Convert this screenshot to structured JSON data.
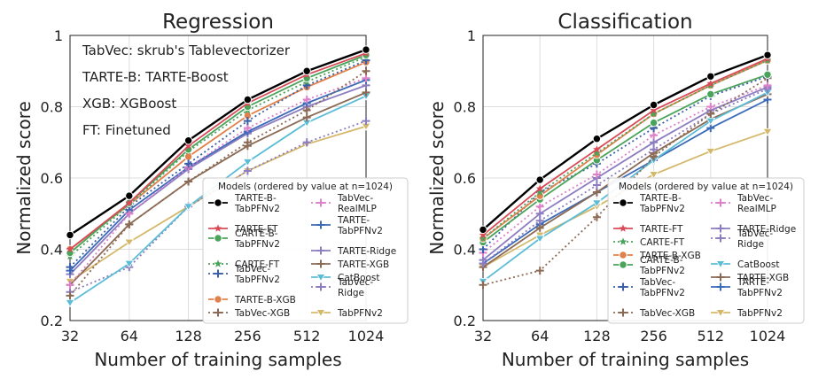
{
  "chart_data": [
    {
      "type": "line",
      "title": "Regression",
      "xlabel": "Number of training samples",
      "ylabel": "Normalized score",
      "x": [
        32,
        64,
        128,
        256,
        512,
        1024
      ],
      "x_ticks": [
        "32",
        "64",
        "128",
        "256",
        "512",
        "1024"
      ],
      "x_scale": "log2",
      "ylim": [
        0.2,
        1.0
      ],
      "y_ticks": [
        "0.2",
        "0.4",
        "0.6",
        "0.8",
        "1"
      ],
      "grid": true,
      "annotations": [
        "TabVec: skrub's Tablevectorizer",
        "TARTE-B: TARTE-Boost",
        "XGB: XGBoost",
        "FT: Finetuned"
      ],
      "legend_title": "Models (ordered by value at n=1024)",
      "legend_position": "lower-right",
      "series": [
        {
          "name": "TARTE-B-TabPFNv2",
          "color": "#000000",
          "style": "solid",
          "marker": "circle",
          "values": [
            0.44,
            0.55,
            0.705,
            0.82,
            0.9,
            0.96
          ]
        },
        {
          "name": "TARTE-FT",
          "color": "#d84b57",
          "style": "solid",
          "marker": "star",
          "values": [
            0.4,
            0.53,
            0.69,
            0.81,
            0.89,
            0.95
          ]
        },
        {
          "name": "CARTE-B-TabPFNv2",
          "color": "#4aa35a",
          "style": "solid",
          "marker": "circle",
          "values": [
            0.39,
            0.53,
            0.68,
            0.8,
            0.88,
            0.945
          ]
        },
        {
          "name": "CARTE-FT",
          "color": "#4aa35a",
          "style": "dotted",
          "marker": "star",
          "values": [
            0.38,
            0.525,
            0.675,
            0.79,
            0.87,
            0.94
          ]
        },
        {
          "name": "TabVec-TabPFNv2",
          "color": "#3b5fa8",
          "style": "dotted",
          "marker": "plus",
          "values": [
            0.35,
            0.52,
            0.64,
            0.76,
            0.86,
            0.93
          ]
        },
        {
          "name": "TARTE-B-XGB",
          "color": "#e0804a",
          "style": "solid",
          "marker": "circle",
          "values": [
            0.4,
            0.525,
            0.66,
            0.775,
            0.855,
            0.925
          ]
        },
        {
          "name": "TabVec-XGB",
          "color": "#8b6a55",
          "style": "dotted",
          "marker": "plus",
          "values": [
            0.27,
            0.47,
            0.59,
            0.7,
            0.79,
            0.9
          ]
        },
        {
          "name": "TabVec-RealMLP",
          "color": "#de7fc9",
          "style": "dotted",
          "marker": "plus",
          "values": [
            0.3,
            0.5,
            0.63,
            0.74,
            0.82,
            0.88
          ]
        },
        {
          "name": "TARTE-TabPFNv2",
          "color": "#3b6ab8",
          "style": "solid",
          "marker": "plus",
          "values": [
            0.34,
            0.51,
            0.63,
            0.73,
            0.81,
            0.875
          ]
        },
        {
          "name": "TARTE-Ridge",
          "color": "#8c7cc0",
          "style": "solid",
          "marker": "plus",
          "values": [
            0.33,
            0.5,
            0.625,
            0.725,
            0.8,
            0.86
          ]
        },
        {
          "name": "TARTE-XGB",
          "color": "#8b6a55",
          "style": "solid",
          "marker": "plus",
          "values": [
            0.3,
            0.47,
            0.59,
            0.69,
            0.77,
            0.84
          ]
        },
        {
          "name": "CatBoost",
          "color": "#5bbcd6",
          "style": "solid",
          "marker": "triangle",
          "values": [
            0.25,
            0.36,
            0.52,
            0.645,
            0.755,
            0.83
          ]
        },
        {
          "name": "TabVec-Ridge",
          "color": "#8c7cc0",
          "style": "dotted",
          "marker": "plus",
          "values": [
            0.28,
            0.35,
            0.52,
            0.62,
            0.7,
            0.76
          ]
        },
        {
          "name": "TabPFNv2",
          "color": "#d4b86a",
          "style": "solid",
          "marker": "triangle",
          "values": [
            0.31,
            0.42,
            0.52,
            0.62,
            0.695,
            0.745
          ]
        }
      ]
    },
    {
      "type": "line",
      "title": "Classification",
      "xlabel": "Number of training samples",
      "ylabel": "Normalized score",
      "x": [
        32,
        64,
        128,
        256,
        512,
        1024
      ],
      "x_ticks": [
        "32",
        "64",
        "128",
        "256",
        "512",
        "1024"
      ],
      "x_scale": "log2",
      "ylim": [
        0.2,
        1.0
      ],
      "y_ticks": [
        "0.2",
        "0.4",
        "0.6",
        "0.8",
        "1"
      ],
      "grid": true,
      "annotations": [],
      "legend_title": "Models (ordered by value at n=1024)",
      "legend_position": "lower-right",
      "series": [
        {
          "name": "TARTE-B-TabPFNv2",
          "color": "#000000",
          "style": "solid",
          "marker": "circle",
          "values": [
            0.455,
            0.595,
            0.71,
            0.805,
            0.885,
            0.945
          ]
        },
        {
          "name": "TARTE-FT",
          "color": "#d84b57",
          "style": "solid",
          "marker": "star",
          "values": [
            0.44,
            0.57,
            0.68,
            0.79,
            0.865,
            0.935
          ]
        },
        {
          "name": "CARTE-FT",
          "color": "#4aa35a",
          "style": "dotted",
          "marker": "star",
          "values": [
            0.43,
            0.56,
            0.67,
            0.78,
            0.86,
            0.93
          ]
        },
        {
          "name": "TARTE-B-XGB",
          "color": "#e0804a",
          "style": "solid",
          "marker": "circle",
          "values": [
            0.43,
            0.55,
            0.665,
            0.78,
            0.86,
            0.93
          ]
        },
        {
          "name": "CARTE-B-TabPFNv2",
          "color": "#4aa35a",
          "style": "solid",
          "marker": "circle",
          "values": [
            0.42,
            0.54,
            0.65,
            0.755,
            0.835,
            0.89
          ]
        },
        {
          "name": "TabVec-TabPFNv2",
          "color": "#3b5fa8",
          "style": "dotted",
          "marker": "plus",
          "values": [
            0.4,
            0.56,
            0.64,
            0.74,
            0.83,
            0.885
          ]
        },
        {
          "name": "TabVec-XGB",
          "color": "#8b6a55",
          "style": "dotted",
          "marker": "plus",
          "values": [
            0.3,
            0.34,
            0.49,
            0.66,
            0.78,
            0.88
          ]
        },
        {
          "name": "TabVec-RealMLP",
          "color": "#de7fc9",
          "style": "dotted",
          "marker": "plus",
          "values": [
            0.39,
            0.52,
            0.61,
            0.72,
            0.8,
            0.86
          ]
        },
        {
          "name": "TARTE-Ridge",
          "color": "#8c7cc0",
          "style": "solid",
          "marker": "plus",
          "values": [
            0.37,
            0.5,
            0.6,
            0.7,
            0.79,
            0.855
          ]
        },
        {
          "name": "TabVec-Ridge",
          "color": "#8c7cc0",
          "style": "dotted",
          "marker": "plus",
          "values": [
            0.36,
            0.48,
            0.58,
            0.68,
            0.78,
            0.85
          ]
        },
        {
          "name": "CatBoost",
          "color": "#5bbcd6",
          "style": "solid",
          "marker": "triangle",
          "values": [
            0.31,
            0.43,
            0.53,
            0.65,
            0.76,
            0.84
          ]
        },
        {
          "name": "TARTE-XGB",
          "color": "#8b6a55",
          "style": "solid",
          "marker": "plus",
          "values": [
            0.35,
            0.46,
            0.56,
            0.67,
            0.765,
            0.835
          ]
        },
        {
          "name": "TARTE-TabPFNv2",
          "color": "#3b6ab8",
          "style": "solid",
          "marker": "plus",
          "values": [
            0.36,
            0.47,
            0.56,
            0.65,
            0.74,
            0.82
          ]
        },
        {
          "name": "TabPFNv2",
          "color": "#d4b86a",
          "style": "solid",
          "marker": "triangle",
          "values": [
            0.35,
            0.44,
            0.52,
            0.61,
            0.675,
            0.73
          ]
        }
      ]
    }
  ]
}
